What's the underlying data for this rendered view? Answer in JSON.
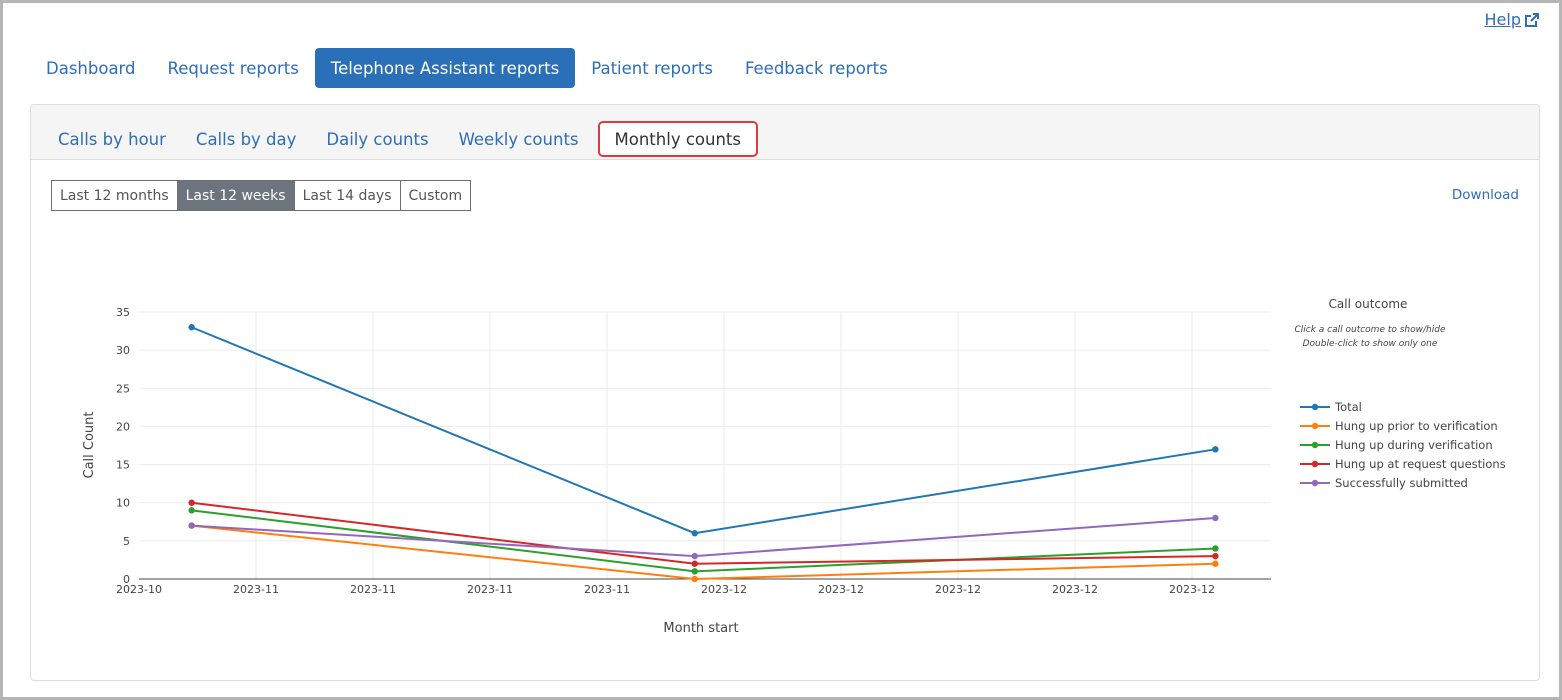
{
  "help": {
    "label": "Help",
    "icon": "external-link-icon"
  },
  "main_tabs": [
    {
      "label": "Dashboard",
      "active": false
    },
    {
      "label": "Request reports",
      "active": false
    },
    {
      "label": "Telephone Assistant reports",
      "active": true
    },
    {
      "label": "Patient reports",
      "active": false
    },
    {
      "label": "Feedback reports",
      "active": false
    }
  ],
  "sub_tabs": [
    {
      "label": "Calls by hour",
      "active": false
    },
    {
      "label": "Calls by day",
      "active": false
    },
    {
      "label": "Daily counts",
      "active": false
    },
    {
      "label": "Weekly counts",
      "active": false
    },
    {
      "label": "Monthly counts",
      "active": true
    }
  ],
  "range_buttons": [
    {
      "label": "Last 12 months",
      "active": false
    },
    {
      "label": "Last 12 weeks",
      "active": true
    },
    {
      "label": "Last 14 days",
      "active": false
    },
    {
      "label": "Custom",
      "active": false
    }
  ],
  "download_label": "Download",
  "chart_data": {
    "type": "line",
    "xlabel": "Month start",
    "ylabel": "Call Count",
    "ylim": [
      0,
      35
    ],
    "yticks": [
      0,
      5,
      10,
      15,
      20,
      25,
      30,
      35
    ],
    "x_tick_labels": [
      "2023-10",
      "2023-11",
      "2023-11",
      "2023-11",
      "2023-11",
      "2023-12",
      "2023-12",
      "2023-12",
      "2023-12",
      "2023-12"
    ],
    "x_points": [
      0.45,
      4.75,
      9.2
    ],
    "x_range": [
      0,
      9.72
    ],
    "grid": true,
    "legend": {
      "title": "Call outcome",
      "hint_line1": "Click a call outcome to show/hide",
      "hint_line2": "Double-click to show only one",
      "placement": "right"
    },
    "series": [
      {
        "name": "Total",
        "color": "#1f77b4",
        "values": [
          33,
          6,
          17
        ]
      },
      {
        "name": "Hung up prior to verification",
        "color": "#ff7f0e",
        "values": [
          7,
          0,
          2
        ]
      },
      {
        "name": "Hung up during verification",
        "color": "#2ca02c",
        "values": [
          9,
          1,
          4
        ]
      },
      {
        "name": "Hung up at request questions",
        "color": "#d62728",
        "values": [
          10,
          2,
          3
        ]
      },
      {
        "name": "Successfully submitted",
        "color": "#9467bd",
        "values": [
          7,
          3,
          8
        ]
      }
    ]
  }
}
